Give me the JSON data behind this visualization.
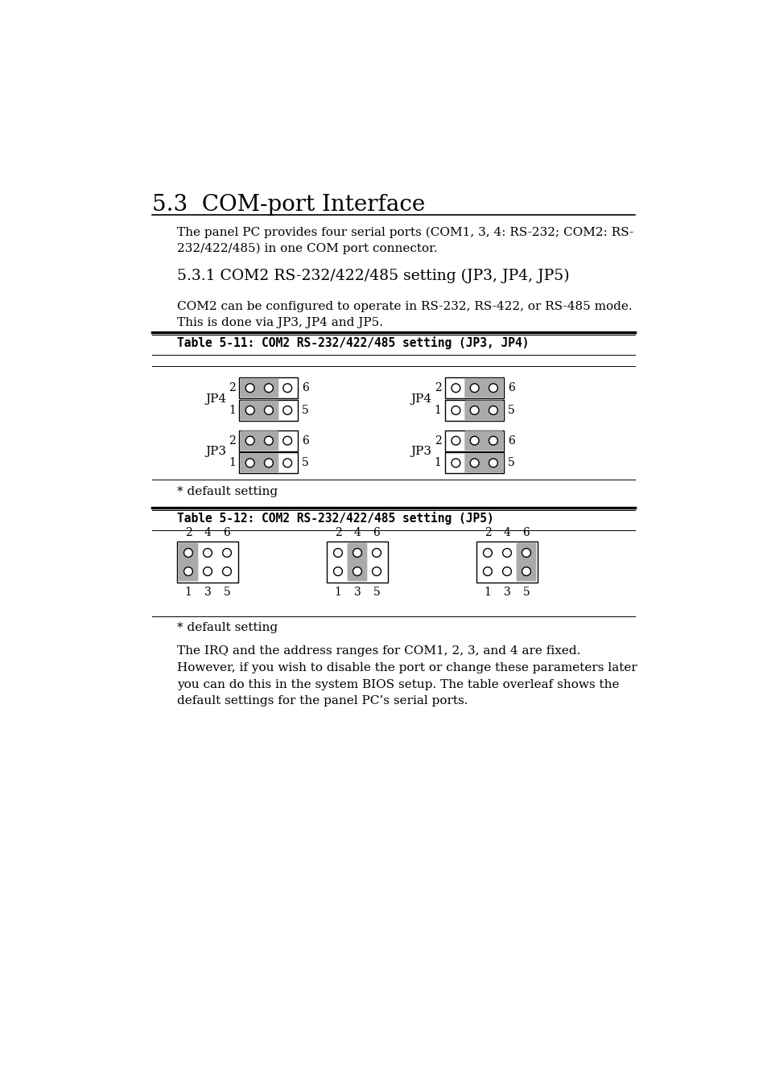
{
  "title": "5.3  COM-port Interface",
  "body_text1": "The panel PC provides four serial ports (COM1, 3, 4: RS-232; COM2: RS-\n232/422/485) in one COM port connector.",
  "subsection_title": "5.3.1 COM2 RS-232/422/485 setting (JP3, JP4, JP5)",
  "body_text2": "COM2 can be configured to operate in RS-232, RS-422, or RS-485 mode.\nThis is done via JP3, JP4 and JP5.",
  "table1_title": "Table 5-11: COM2 RS-232/422/485 setting (JP3, JP4)",
  "table2_title": "Table 5-12: COM2 RS-232/422/485 setting (JP5)",
  "default_setting": "* default setting",
  "final_text": "The IRQ and the address ranges for COM1, 2, 3, and 4 are fixed.\nHowever, if you wish to disable the port or change these parameters later\nyou can do this in the system BIOS setup. The table overleaf shows the\ndefault settings for the panel PC’s serial ports.",
  "bg_color": "#ffffff",
  "text_color": "#000000",
  "pin_gray": "#aaaaaa"
}
